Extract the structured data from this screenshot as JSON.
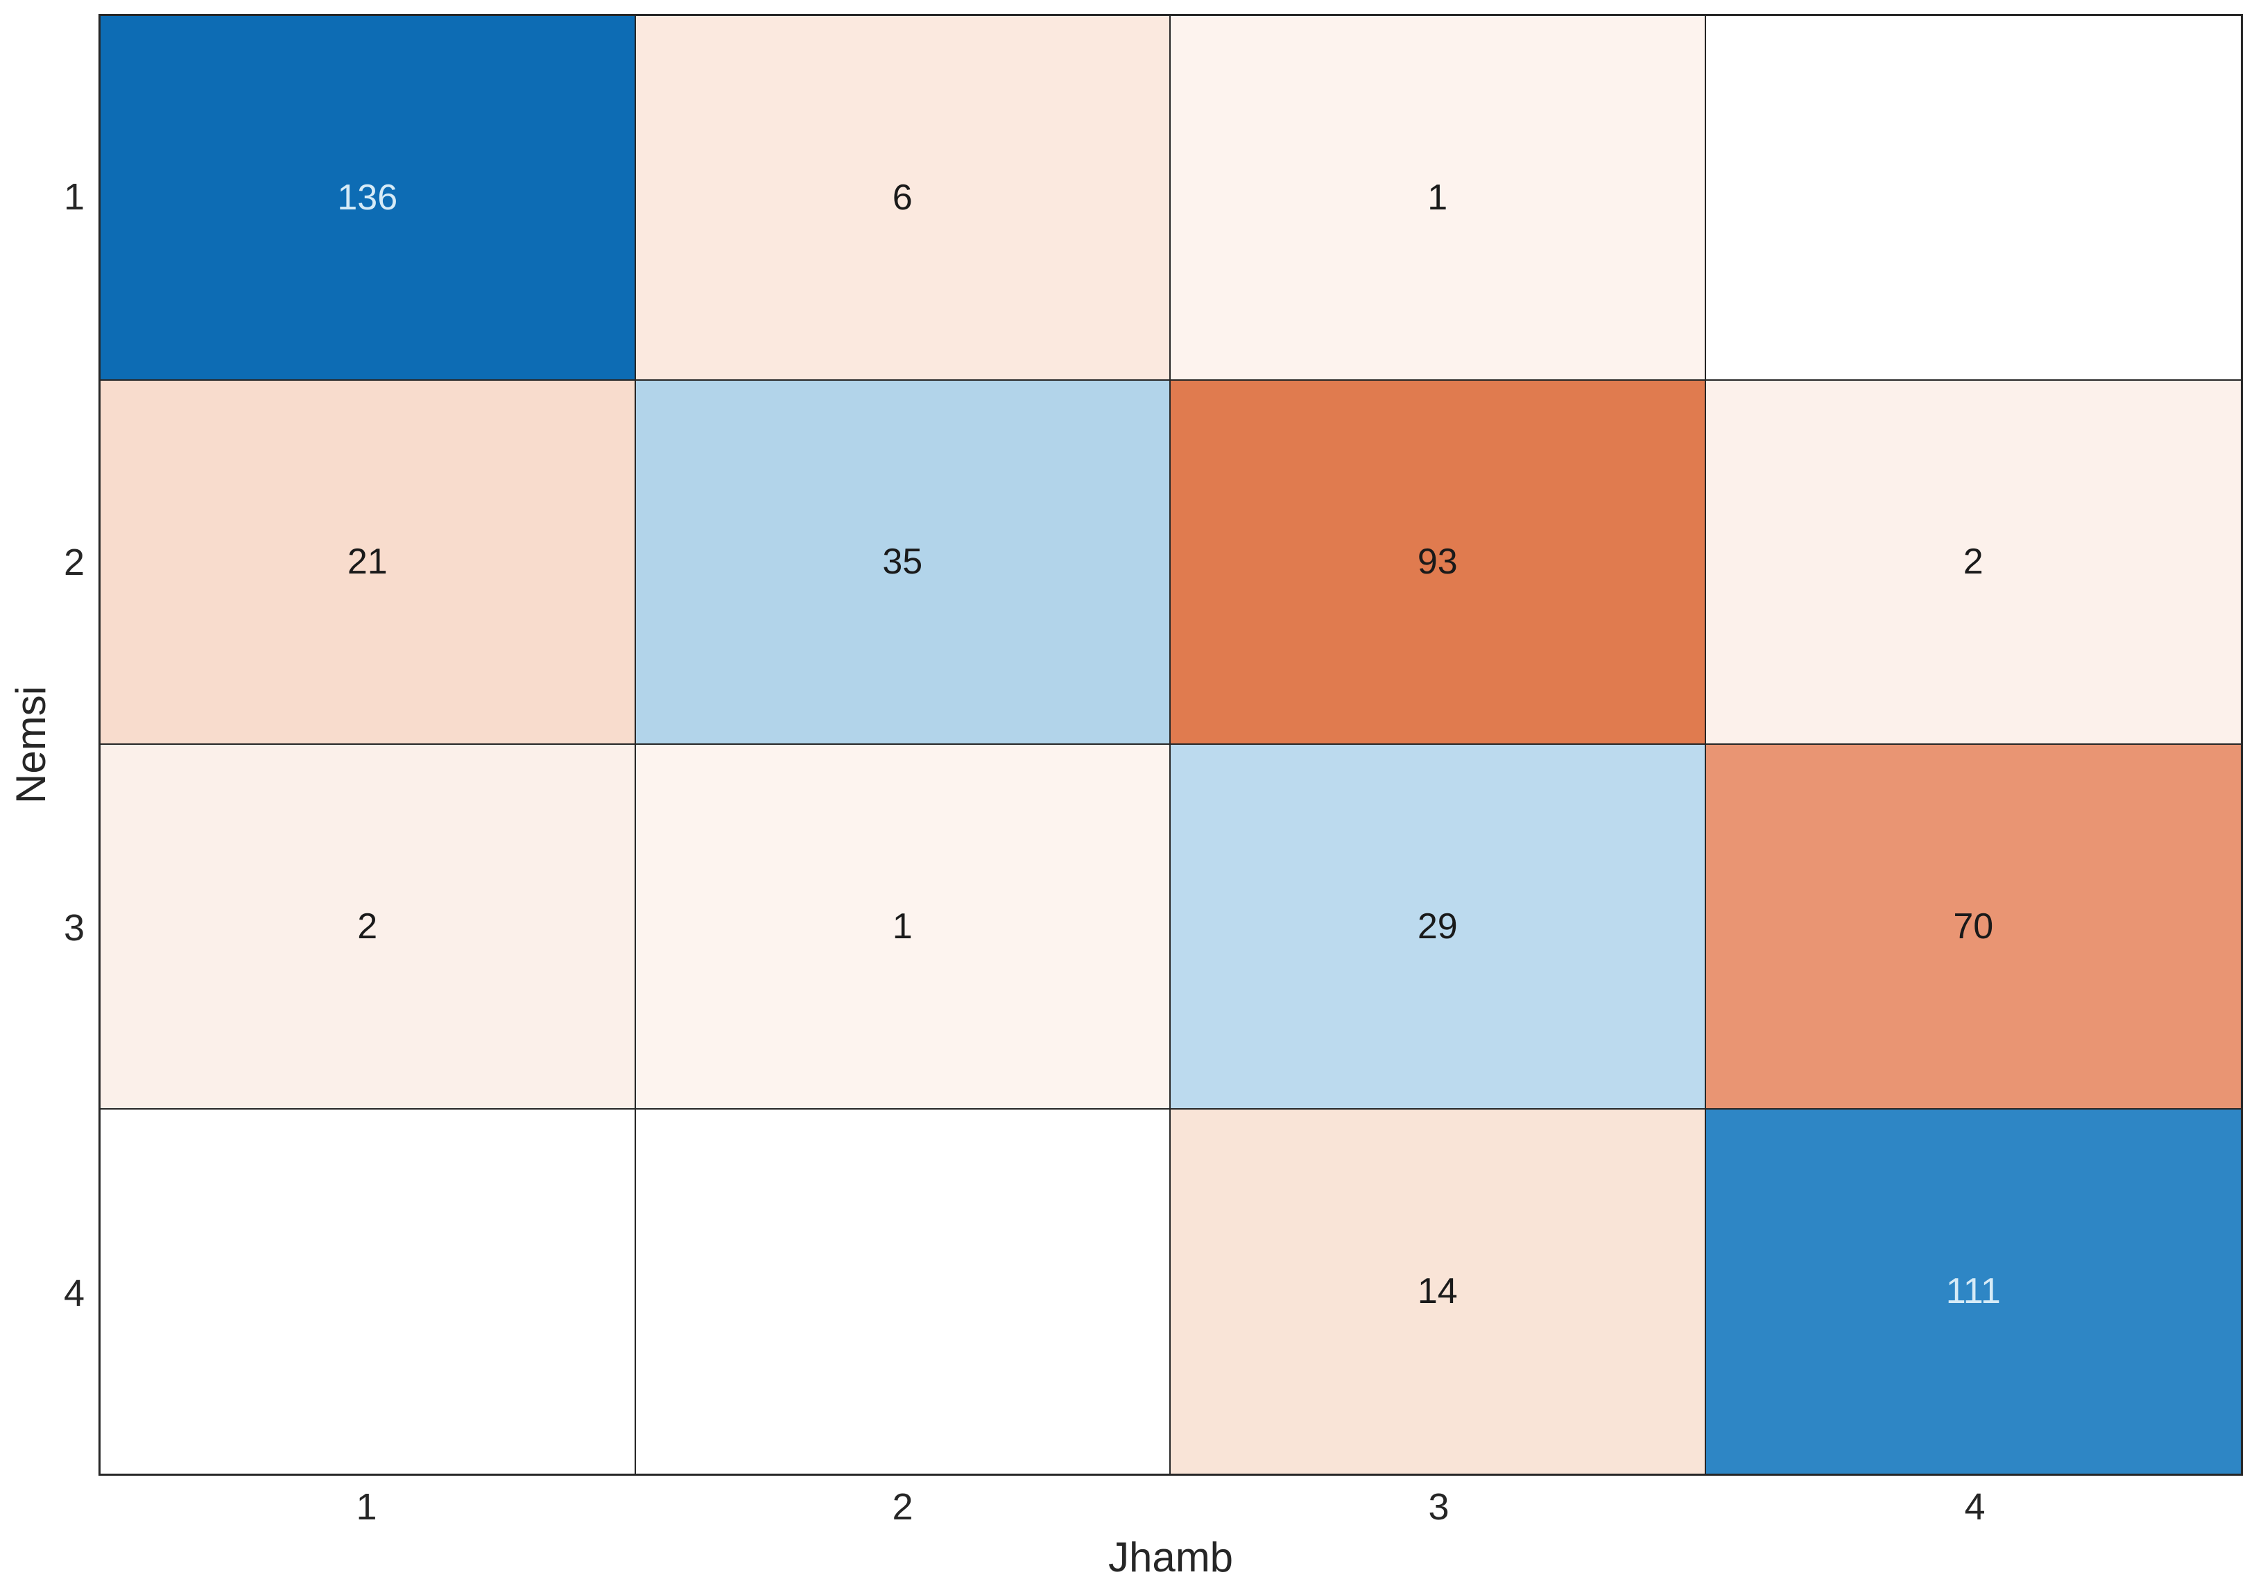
{
  "chart_data": {
    "type": "heatmap",
    "title": "",
    "xlabel": "Jhamb",
    "ylabel": "Nemsi",
    "x_ticklabels": [
      "1",
      "2",
      "3",
      "4"
    ],
    "y_ticklabels": [
      "1",
      "2",
      "3",
      "4"
    ],
    "matrix": [
      [
        136,
        6,
        1,
        null
      ],
      [
        21,
        35,
        93,
        2
      ],
      [
        2,
        1,
        29,
        70
      ],
      [
        null,
        null,
        14,
        111
      ]
    ],
    "cell_colors": [
      [
        "#0d6cb4",
        "#fbe9df",
        "#fdf3ee",
        "#ffffff"
      ],
      [
        "#f8dccd",
        "#b2d4ea",
        "#e07b4f",
        "#fcf1eb"
      ],
      [
        "#fbf0ea",
        "#fdf4ef",
        "#bcdaee",
        "#e99573"
      ],
      [
        "#ffffff",
        "#ffffff",
        "#f9e4d7",
        "#2e86c5"
      ]
    ],
    "text_colors": [
      [
        "#d6ebf7",
        "#1a1a1a",
        "#1a1a1a",
        "#1a1a1a"
      ],
      [
        "#1a1a1a",
        "#1a1a1a",
        "#1a1a1a",
        "#1a1a1a"
      ],
      [
        "#1a1a1a",
        "#1a1a1a",
        "#1a1a1a",
        "#1a1a1a"
      ],
      [
        "#1a1a1a",
        "#1a1a1a",
        "#1a1a1a",
        "#d6ebf7"
      ]
    ],
    "grid_line_color": "#262626",
    "tick_label_color": "#262626",
    "layout": {
      "grid": "4x4 cells with dark cell borders",
      "legend": "none",
      "colormap_note": "diagonal cells blue, off-diagonal cells orange/red, empty cells white"
    }
  }
}
